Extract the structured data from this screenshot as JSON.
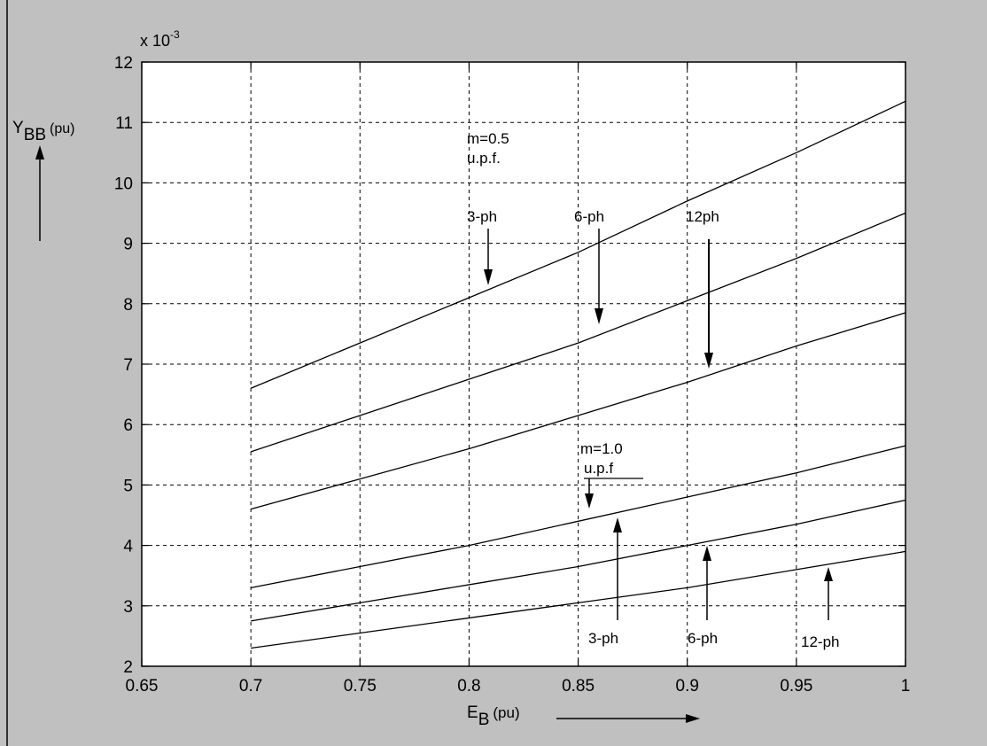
{
  "chart_data": {
    "type": "line",
    "title": "",
    "xlabel": {
      "main": "E",
      "sub": "B",
      "unit": "(pu)"
    },
    "ylabel": {
      "main": "Y",
      "sub": "BB",
      "unit": "(pu)"
    },
    "y_multiplier": {
      "base": "x 10",
      "exp": "-3"
    },
    "xlim": [
      0.65,
      1.0
    ],
    "ylim": [
      2,
      12
    ],
    "xticks": [
      0.65,
      0.7,
      0.75,
      0.8,
      0.85,
      0.9,
      0.95,
      1.0
    ],
    "xtick_labels": [
      "0.65",
      "0.7",
      "0.75",
      "0.8",
      "0.85",
      "0.9",
      "0.95",
      "1"
    ],
    "yticks": [
      2,
      3,
      4,
      5,
      6,
      7,
      8,
      9,
      10,
      11,
      12
    ],
    "ytick_labels": [
      "2",
      "3",
      "4",
      "5",
      "6",
      "7",
      "8",
      "9",
      "10",
      "11",
      "12"
    ],
    "grid": true,
    "legend": "none",
    "colors": {
      "background": "#c0c0c0",
      "plot": "#ffffff",
      "ink": "#000000"
    },
    "x": [
      0.7,
      0.75,
      0.8,
      0.85,
      0.9,
      0.95,
      1.0
    ],
    "series": [
      {
        "values": [
          6.6,
          7.35,
          8.1,
          8.85,
          9.7,
          10.5,
          11.35
        ]
      },
      {
        "values": [
          5.55,
          6.15,
          6.75,
          7.35,
          8.05,
          8.75,
          9.5
        ]
      },
      {
        "values": [
          4.6,
          5.1,
          5.6,
          6.15,
          6.7,
          7.3,
          7.85
        ]
      },
      {
        "values": [
          3.3,
          3.65,
          4.0,
          4.4,
          4.8,
          5.2,
          5.65
        ]
      },
      {
        "values": [
          2.75,
          3.05,
          3.35,
          3.65,
          4.0,
          4.35,
          4.75
        ]
      },
      {
        "values": [
          2.3,
          2.55,
          2.8,
          3.05,
          3.3,
          3.6,
          3.9
        ]
      }
    ],
    "annotations": {
      "group_top_line1": "m=0.5",
      "group_top_line2": "u.p.f.",
      "group_bottom_line1": "m=1.0",
      "group_bottom_line2": "u.p.f",
      "top_3ph": "3-ph",
      "top_6ph": "6-ph",
      "top_12ph": "12ph",
      "bottom_3ph": "3-ph",
      "bottom_6ph": "6-ph",
      "bottom_12ph": "12-ph"
    }
  }
}
